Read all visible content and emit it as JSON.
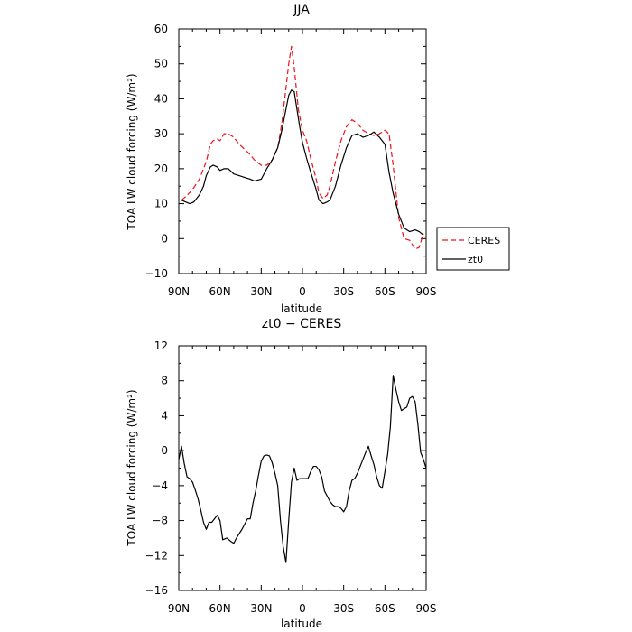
{
  "chart_data": [
    {
      "type": "line",
      "title": "JJA",
      "xlabel": "latitude",
      "ylabel": "TOA LW cloud forcing (W/m²)",
      "xlim": [
        90,
        -90
      ],
      "ylim": [
        -10,
        60
      ],
      "xticks": [
        90,
        60,
        30,
        0,
        -30,
        -60,
        -90
      ],
      "xticklabels": [
        "90N",
        "60N",
        "30N",
        "0",
        "30S",
        "60S",
        "90S"
      ],
      "yticks": [
        -10,
        0,
        10,
        20,
        30,
        40,
        50,
        60
      ],
      "yticklabels": [
        "−10",
        "0",
        "10",
        "20",
        "30",
        "40",
        "50",
        "60"
      ],
      "legend_position": "outside-right",
      "legend": [
        "CERES",
        "zt0"
      ],
      "series": [
        {
          "name": "CERES",
          "color": "#e8141b",
          "dash": "dashed",
          "x": [
            88,
            85,
            80,
            75,
            70,
            67,
            65,
            62,
            60,
            57,
            54,
            50,
            46,
            42,
            38,
            35,
            30,
            26,
            22,
            18,
            15,
            12,
            10,
            8,
            6,
            3,
            0,
            -3,
            -6,
            -10,
            -12,
            -15,
            -18,
            -20,
            -24,
            -28,
            -32,
            -36,
            -40,
            -44,
            -48,
            -52,
            -56,
            -60,
            -63,
            -66,
            -70,
            -74,
            -78,
            -82,
            -85,
            -88
          ],
          "y": [
            11,
            12,
            14,
            17,
            22,
            27,
            28,
            28.5,
            28,
            30,
            30,
            29,
            27,
            25.5,
            24,
            22.5,
            21,
            21,
            22.5,
            26,
            33,
            43,
            50,
            55,
            49,
            37,
            31,
            28,
            23,
            17,
            13,
            11.5,
            12.5,
            15,
            22,
            28,
            32,
            34,
            33,
            31,
            30,
            29.5,
            30,
            31,
            30,
            21,
            6,
            0,
            -0.5,
            -3,
            -2.5,
            1.5
          ]
        },
        {
          "name": "zt0",
          "color": "#000000",
          "dash": "solid",
          "x": [
            88,
            85,
            82,
            79,
            75,
            72,
            70,
            67,
            65,
            62,
            60,
            57,
            54,
            50,
            46,
            42,
            38,
            35,
            30,
            26,
            22,
            18,
            15,
            12,
            10,
            8,
            6,
            4,
            2,
            0,
            -3,
            -6,
            -10,
            -12,
            -15,
            -18,
            -20,
            -24,
            -28,
            -32,
            -36,
            -40,
            -44,
            -48,
            -52,
            -56,
            -60,
            -63,
            -66,
            -70,
            -74,
            -78,
            -82,
            -85,
            -88
          ],
          "y": [
            11,
            10.5,
            10,
            10.5,
            12.5,
            15,
            18,
            20.5,
            21,
            20.5,
            19.5,
            20,
            20,
            18.5,
            18,
            17.5,
            17,
            16.5,
            17,
            20,
            22.5,
            26,
            31,
            37,
            41,
            42.5,
            42,
            37,
            32,
            27.5,
            23,
            19,
            14,
            11,
            10,
            10.5,
            11,
            15,
            21,
            26,
            29.5,
            30,
            29,
            29.5,
            30.5,
            29,
            27,
            19,
            13,
            7,
            3,
            2,
            2.5,
            2,
            1
          ]
        }
      ]
    },
    {
      "type": "line",
      "title": "zt0 − CERES",
      "xlabel": "latitude",
      "ylabel": "TOA LW cloud forcing (W/m²)",
      "xlim": [
        90,
        -90
      ],
      "ylim": [
        -16,
        12
      ],
      "xticks": [
        90,
        60,
        30,
        0,
        -30,
        -60,
        -90
      ],
      "xticklabels": [
        "90N",
        "60N",
        "30N",
        "0",
        "30S",
        "60S",
        "90S"
      ],
      "yticks": [
        -16,
        -12,
        -8,
        -4,
        0,
        4,
        8,
        12
      ],
      "yticklabels": [
        "−16",
        "−12",
        "−8",
        "−4",
        "0",
        "4",
        "8",
        "12"
      ],
      "series": [
        {
          "color": "#000000",
          "dash": "solid",
          "x": [
            90,
            88,
            86,
            84,
            82,
            80,
            78,
            76,
            74,
            72,
            70,
            68,
            66,
            64,
            62,
            60,
            58,
            55,
            52,
            50,
            48,
            46,
            44,
            42,
            40,
            38,
            36,
            34,
            32,
            30,
            28,
            26,
            24,
            22,
            20,
            18,
            16,
            14,
            12,
            10,
            8,
            6,
            4,
            2,
            0,
            -2,
            -4,
            -6,
            -8,
            -10,
            -12,
            -14,
            -16,
            -18,
            -20,
            -22,
            -24,
            -26,
            -28,
            -30,
            -32,
            -34,
            -36,
            -38,
            -40,
            -42,
            -44,
            -46,
            -48,
            -50,
            -52,
            -54,
            -56,
            -58,
            -60,
            -62,
            -64,
            -66,
            -68,
            -70,
            -72,
            -74,
            -76,
            -78,
            -80,
            -82,
            -84,
            -86,
            -88,
            -90
          ],
          "y": [
            -1,
            0.5,
            -1.5,
            -3,
            -3.2,
            -3.6,
            -4.5,
            -5.5,
            -6.8,
            -8.2,
            -9,
            -8.2,
            -8.2,
            -7.8,
            -7.4,
            -8,
            -10.2,
            -10,
            -10.4,
            -10.6,
            -10,
            -9.5,
            -9,
            -8.4,
            -7.8,
            -7.8,
            -6,
            -4.6,
            -2.8,
            -1.2,
            -0.6,
            -0.5,
            -0.6,
            -1.4,
            -2.6,
            -4,
            -8,
            -11,
            -12.8,
            -8,
            -3.6,
            -2,
            -3.4,
            -3.2,
            -3.2,
            -3.2,
            -3.2,
            -2.4,
            -1.8,
            -1.8,
            -2.2,
            -3,
            -4.6,
            -5.2,
            -5.8,
            -6.2,
            -6.4,
            -6.4,
            -6.6,
            -7,
            -6.4,
            -4.6,
            -3.4,
            -3.2,
            -2.6,
            -1.8,
            -1,
            -0.2,
            0.5,
            -0.6,
            -1.6,
            -3,
            -4,
            -4.3,
            -2.4,
            -0.4,
            2.8,
            8.6,
            7,
            5.6,
            4.6,
            4.8,
            5,
            6,
            6.2,
            5.6,
            3,
            -0.2,
            -1,
            -2
          ]
        }
      ]
    }
  ]
}
